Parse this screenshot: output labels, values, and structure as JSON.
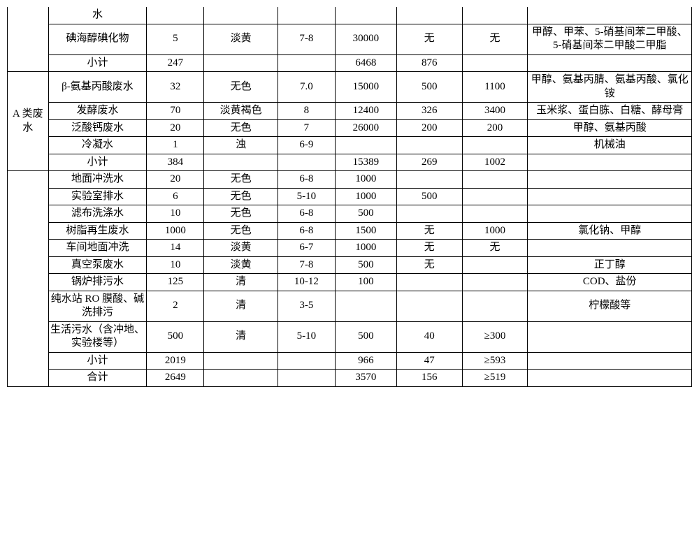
{
  "table": {
    "group1_label": "",
    "groupA_label": "A 类废水",
    "rows_group1": [
      {
        "name": "水",
        "vals": [
          "",
          "",
          "",
          "",
          "",
          "",
          ""
        ]
      },
      {
        "name": "碘海醇碘化物",
        "vals": [
          "5",
          "淡黄",
          "7-8",
          "30000",
          "无",
          "无",
          "甲醇、甲苯、5-硝基间苯二甲酸、5-硝基间苯二甲酸二甲脂"
        ]
      },
      {
        "name": "小计",
        "vals": [
          "247",
          "",
          "",
          "6468",
          "876",
          "",
          ""
        ]
      }
    ],
    "rows_groupA": [
      {
        "name": "β-氨基丙酸废水",
        "vals": [
          "32",
          "无色",
          "7.0",
          "15000",
          "500",
          "1100",
          "甲醇、氨基丙腈、氨基丙酸、氯化铵"
        ]
      },
      {
        "name": "发酵废水",
        "vals": [
          "70",
          "淡黄褐色",
          "8",
          "12400",
          "326",
          "3400",
          "玉米浆、蛋白胨、白糖、酵母膏"
        ]
      },
      {
        "name": "泛酸钙废水",
        "vals": [
          "20",
          "无色",
          "7",
          "26000",
          "200",
          "200",
          "甲醇、氨基丙酸"
        ]
      },
      {
        "name": "冷凝水",
        "vals": [
          "1",
          "浊",
          "6-9",
          "",
          "",
          "",
          "机械油"
        ]
      },
      {
        "name": "小计",
        "vals": [
          "384",
          "",
          "",
          "15389",
          "269",
          "1002",
          ""
        ]
      }
    ],
    "rows_group3": [
      {
        "name": "地面冲洗水",
        "vals": [
          "20",
          "无色",
          "6-8",
          "1000",
          "",
          "",
          ""
        ]
      },
      {
        "name": "实验室排水",
        "vals": [
          "6",
          "无色",
          "5-10",
          "1000",
          "500",
          "",
          ""
        ]
      },
      {
        "name": "滤布洗涤水",
        "vals": [
          "10",
          "无色",
          "6-8",
          "500",
          "",
          "",
          ""
        ]
      },
      {
        "name": "树脂再生废水",
        "vals": [
          "1000",
          "无色",
          "6-8",
          "1500",
          "无",
          "1000",
          "氯化钠、甲醇"
        ]
      },
      {
        "name": "车间地面冲洗",
        "vals": [
          "14",
          "淡黄",
          "6-7",
          "1000",
          "无",
          "无",
          ""
        ]
      },
      {
        "name": "真空泵废水",
        "vals": [
          "10",
          "淡黄",
          "7-8",
          "500",
          "无",
          "",
          "正丁醇"
        ]
      },
      {
        "name": "锅炉排污水",
        "vals": [
          "125",
          "清",
          "10-12",
          "100",
          "",
          "",
          "COD、盐份"
        ]
      },
      {
        "name": "纯水站 RO 膜酸、碱洗排污",
        "vals": [
          "2",
          "清",
          "3-5",
          "",
          "",
          "",
          "柠檬酸等"
        ]
      },
      {
        "name": "生活污水（含冲地、实验楼等）",
        "vals": [
          "500",
          "清",
          "5-10",
          "500",
          "40",
          "≥300",
          ""
        ]
      },
      {
        "name": "小计",
        "vals": [
          "2019",
          "",
          "",
          "966",
          "47",
          "≥593",
          ""
        ]
      },
      {
        "name": "合计",
        "vals": [
          "2649",
          "",
          "",
          "3570",
          "156",
          "≥519",
          ""
        ]
      }
    ]
  }
}
